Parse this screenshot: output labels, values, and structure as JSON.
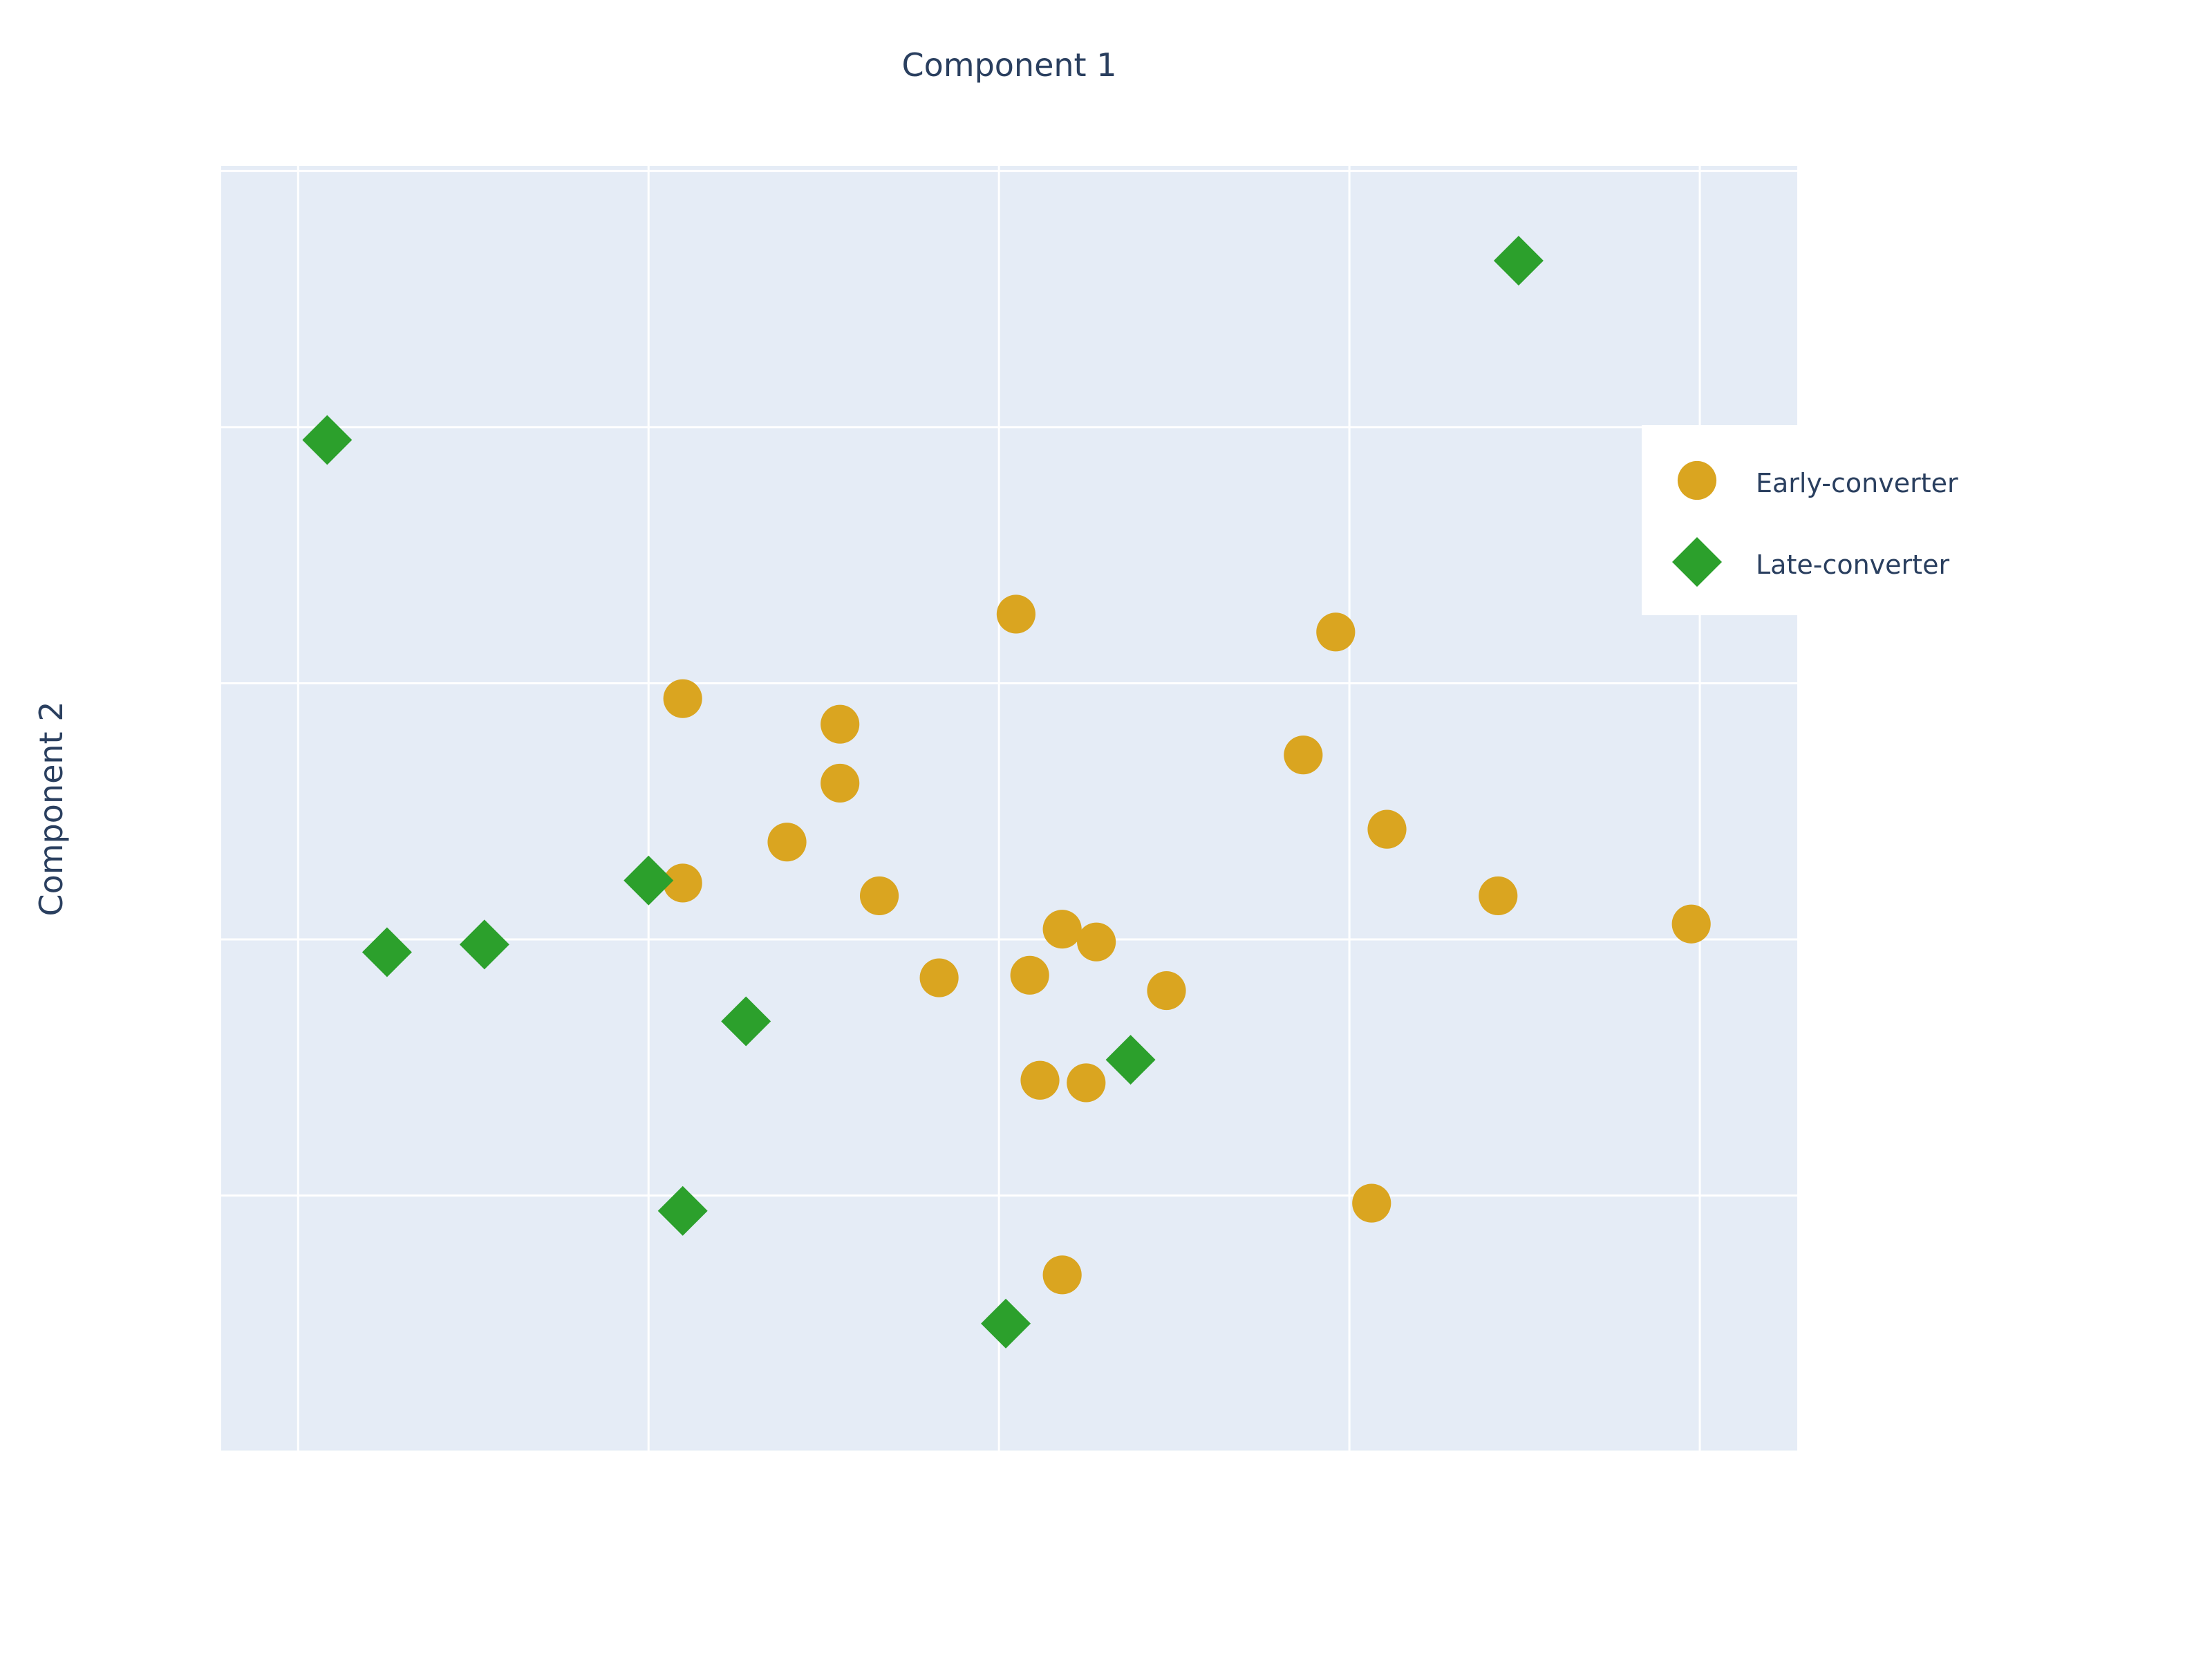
{
  "chart_data": {
    "type": "scatter",
    "title": "",
    "xlabel": "Component 1",
    "ylabel": "Component 2",
    "xlim": [
      -3.22,
      6.0
    ],
    "ylim": [
      -2.6,
      2.42
    ],
    "x_grid": [
      -2.77,
      -0.72,
      1.33,
      3.38,
      5.43
    ],
    "y_grid": [
      -2.6,
      -1.6,
      -0.6,
      0.4,
      1.4,
      2.4
    ],
    "grid": true,
    "legend_position": "top-right",
    "series": [
      {
        "name": "Early-converter",
        "marker": "circle",
        "color": "#DAA520",
        "points": [
          [
            1.43,
            0.67
          ],
          [
            3.3,
            0.6
          ],
          [
            -0.52,
            0.34
          ],
          [
            0.4,
            0.24
          ],
          [
            0.4,
            0.01
          ],
          [
            3.11,
            0.12
          ],
          [
            0.09,
            -0.22
          ],
          [
            3.6,
            -0.17
          ],
          [
            -0.52,
            -0.38
          ],
          [
            0.63,
            -0.43
          ],
          [
            4.25,
            -0.43
          ],
          [
            5.38,
            -0.54
          ],
          [
            1.7,
            -0.56
          ],
          [
            1.9,
            -0.61
          ],
          [
            0.98,
            -0.75
          ],
          [
            1.51,
            -0.74
          ],
          [
            2.31,
            -0.8
          ],
          [
            1.57,
            -1.15
          ],
          [
            1.84,
            -1.16
          ],
          [
            3.51,
            -1.63
          ],
          [
            1.7,
            -1.91
          ]
        ]
      },
      {
        "name": "Late-converter",
        "marker": "diamond",
        "color": "#2CA02C",
        "points": [
          [
            4.37,
            2.05
          ],
          [
            -2.6,
            1.35
          ],
          [
            -0.72,
            -0.37
          ],
          [
            -1.68,
            -0.62
          ],
          [
            -2.25,
            -0.65
          ],
          [
            -0.15,
            -0.92
          ],
          [
            2.1,
            -1.07
          ],
          [
            -0.52,
            -1.66
          ],
          [
            1.37,
            -2.1
          ]
        ]
      }
    ]
  }
}
